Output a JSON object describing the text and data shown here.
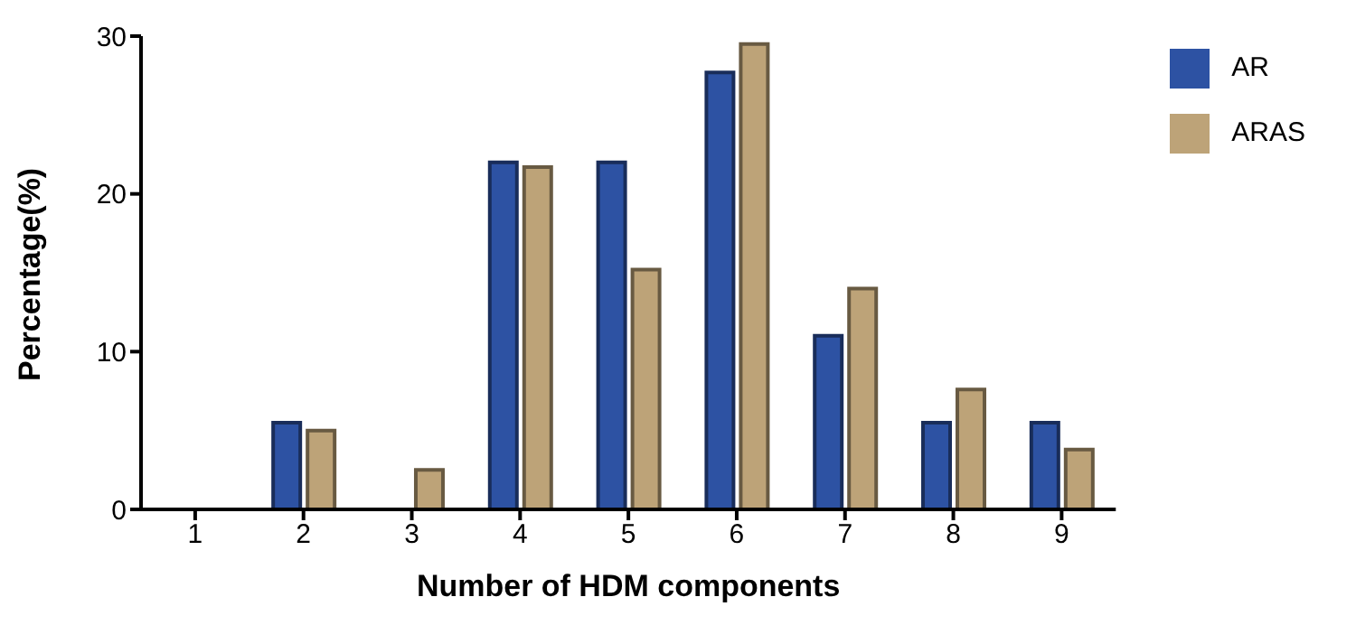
{
  "chart_data": {
    "type": "bar",
    "xlabel": "Number of HDM components",
    "ylabel": "Percentage(%)",
    "categories": [
      "1",
      "2",
      "3",
      "4",
      "5",
      "6",
      "7",
      "8",
      "9"
    ],
    "series": [
      {
        "name": "AR",
        "color": "#2d52a3",
        "values": [
          0,
          5.5,
          0,
          22.0,
          22.0,
          27.7,
          11.0,
          5.5,
          5.5
        ]
      },
      {
        "name": "ARAS",
        "color": "#bda378",
        "values": [
          0,
          5.0,
          2.5,
          21.7,
          15.2,
          29.5,
          14.0,
          7.6,
          3.8
        ]
      }
    ],
    "ylim": [
      0,
      30
    ],
    "yticks": [
      0,
      10,
      20,
      30
    ],
    "grid": false,
    "legend": "top right"
  }
}
